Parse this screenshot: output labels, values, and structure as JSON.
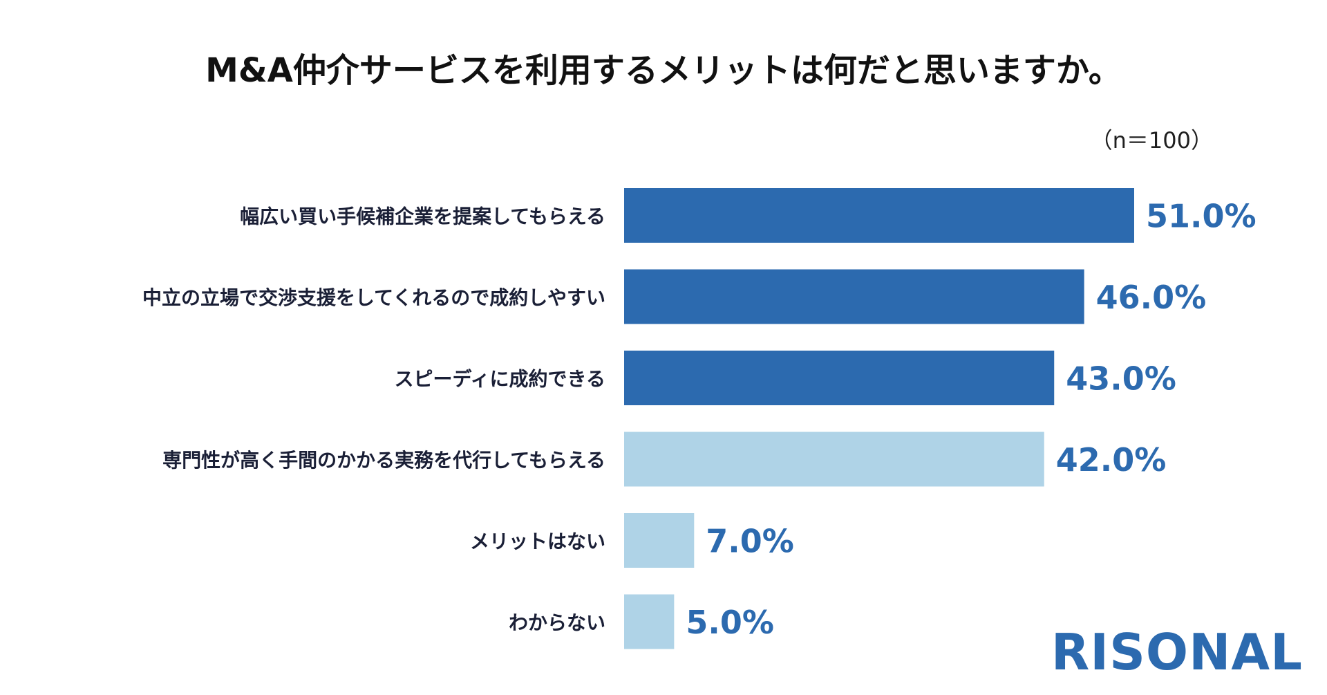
{
  "chart_data": {
    "type": "bar",
    "orientation": "horizontal",
    "title": "M&A仲介サービスを利用するメリットは何だと思いますか。",
    "sample_note": "（n＝100）",
    "categories": [
      "幅広い買い手候補企業を提案してもらえる",
      "中立の立場で交渉支援をしてくれるので成約しやすい",
      "スピーディに成約できる",
      "専門性が高く手間のかかる実務を代行してもらえる",
      "メリットはない",
      "わからない"
    ],
    "values": [
      51.0,
      46.0,
      43.0,
      42.0,
      7.0,
      5.0
    ],
    "value_labels": [
      "51.0%",
      "46.0%",
      "43.0%",
      "42.0%",
      "7.0%",
      "5.0%"
    ],
    "bar_colors": [
      "#2c6aaf",
      "#2c6aaf",
      "#2c6aaf",
      "#afd3e7",
      "#afd3e7",
      "#afd3e7"
    ],
    "value_label_color": "#2c6aaf",
    "xlim": [
      0,
      51.0
    ],
    "grid": false,
    "legend": "none"
  },
  "brand": {
    "logo_text": "RISONAL",
    "color": "#2c6aaf"
  }
}
